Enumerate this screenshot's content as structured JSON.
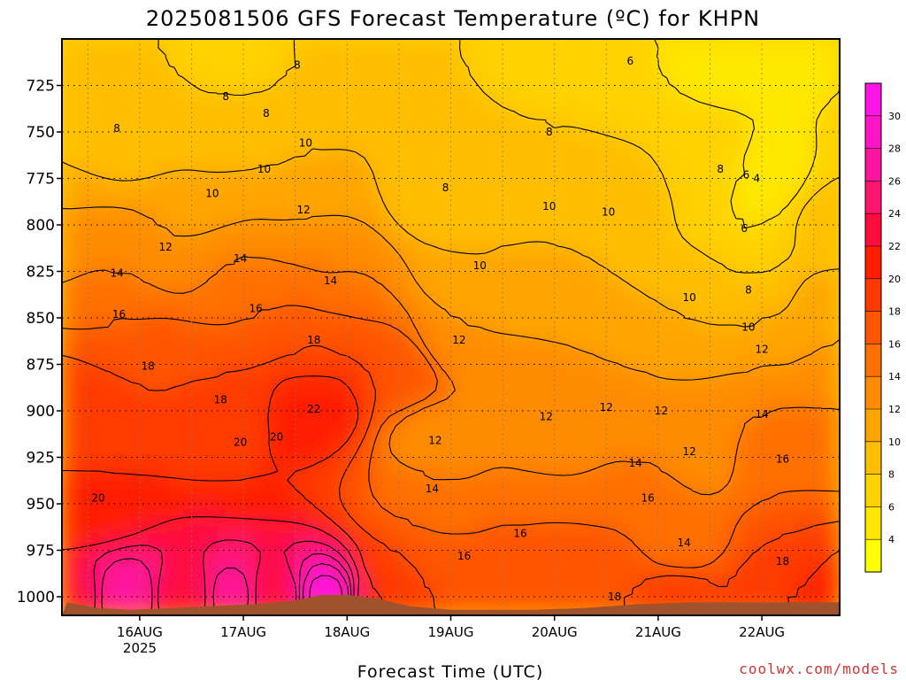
{
  "chart_data": {
    "type": "heatmap",
    "title": "2025081506 GFS Forecast Temperature (ºC) for KHPN",
    "xlabel": "Forecast Time (UTC)",
    "ylabel": "",
    "credit": "coolwx.com/models",
    "x_ticks": [
      "16AUG",
      "17AUG",
      "18AUG",
      "19AUG",
      "20AUG",
      "21AUG",
      "22AUG"
    ],
    "x_year_label": "2025",
    "x_range_days": [
      15.25,
      22.75
    ],
    "y_ticks": [
      725,
      750,
      775,
      800,
      825,
      850,
      875,
      900,
      925,
      950,
      975,
      1000
    ],
    "y_range_hpa": [
      700,
      1010
    ],
    "grid": true,
    "colorbar": {
      "ticks": [
        4,
        6,
        8,
        10,
        12,
        14,
        16,
        18,
        20,
        22,
        24,
        26,
        28,
        30
      ],
      "range": [
        2,
        32
      ],
      "colors": [
        "#ffff00",
        "#ffe800",
        "#ffd200",
        "#ffbe00",
        "#ffa500",
        "#ff8c00",
        "#ff7000",
        "#ff5400",
        "#ff3a00",
        "#ff1e00",
        "#ff0c3c",
        "#ff1470",
        "#ff14a0",
        "#ff14c8",
        "#ff14e6"
      ]
    },
    "ground_color": "#a0522d",
    "contour_interval": 2,
    "contour_labels": [
      {
        "day": 15.78,
        "p": 748,
        "v": 8
      },
      {
        "day": 16.83,
        "p": 731,
        "v": 8
      },
      {
        "day": 17.22,
        "p": 740,
        "v": 8
      },
      {
        "day": 17.52,
        "p": 714,
        "v": 8
      },
      {
        "day": 17.2,
        "p": 770,
        "v": 10
      },
      {
        "day": 17.6,
        "p": 756,
        "v": 10
      },
      {
        "day": 16.7,
        "p": 783,
        "v": 10
      },
      {
        "day": 16.25,
        "p": 812,
        "v": 12
      },
      {
        "day": 17.58,
        "p": 792,
        "v": 12
      },
      {
        "day": 15.78,
        "p": 826,
        "v": 14
      },
      {
        "day": 16.97,
        "p": 818,
        "v": 14
      },
      {
        "day": 17.84,
        "p": 830,
        "v": 14
      },
      {
        "day": 15.8,
        "p": 848,
        "v": 16
      },
      {
        "day": 17.12,
        "p": 845,
        "v": 16
      },
      {
        "day": 16.08,
        "p": 876,
        "v": 18
      },
      {
        "day": 16.78,
        "p": 894,
        "v": 18
      },
      {
        "day": 17.68,
        "p": 862,
        "v": 18
      },
      {
        "day": 15.6,
        "p": 947,
        "v": 20
      },
      {
        "day": 16.97,
        "p": 917,
        "v": 20
      },
      {
        "day": 17.32,
        "p": 914,
        "v": 20
      },
      {
        "day": 17.68,
        "p": 899,
        "v": 22
      },
      {
        "day": 18.95,
        "p": 780,
        "v": 8
      },
      {
        "day": 19.95,
        "p": 750,
        "v": 8
      },
      {
        "day": 20.73,
        "p": 712,
        "v": 6
      },
      {
        "day": 21.6,
        "p": 770,
        "v": 8
      },
      {
        "day": 21.85,
        "p": 773,
        "v": 6
      },
      {
        "day": 21.95,
        "p": 775,
        "v": 4
      },
      {
        "day": 21.83,
        "p": 802,
        "v": 6
      },
      {
        "day": 19.95,
        "p": 790,
        "v": 10
      },
      {
        "day": 20.52,
        "p": 793,
        "v": 10
      },
      {
        "day": 19.28,
        "p": 822,
        "v": 10
      },
      {
        "day": 21.3,
        "p": 839,
        "v": 10
      },
      {
        "day": 21.87,
        "p": 835,
        "v": 8
      },
      {
        "day": 21.87,
        "p": 855,
        "v": 10
      },
      {
        "day": 19.08,
        "p": 862,
        "v": 12
      },
      {
        "day": 22.0,
        "p": 867,
        "v": 12
      },
      {
        "day": 20.5,
        "p": 898,
        "v": 12
      },
      {
        "day": 21.03,
        "p": 900,
        "v": 12
      },
      {
        "day": 19.92,
        "p": 903,
        "v": 12
      },
      {
        "day": 18.85,
        "p": 916,
        "v": 12
      },
      {
        "day": 21.3,
        "p": 922,
        "v": 12
      },
      {
        "day": 22.0,
        "p": 902,
        "v": 14
      },
      {
        "day": 18.82,
        "p": 942,
        "v": 14
      },
      {
        "day": 20.78,
        "p": 928,
        "v": 14
      },
      {
        "day": 21.25,
        "p": 971,
        "v": 14
      },
      {
        "day": 22.2,
        "p": 926,
        "v": 16
      },
      {
        "day": 20.9,
        "p": 947,
        "v": 16
      },
      {
        "day": 19.67,
        "p": 966,
        "v": 16
      },
      {
        "day": 19.13,
        "p": 978,
        "v": 16
      },
      {
        "day": 20.58,
        "p": 1000,
        "v": 18
      },
      {
        "day": 22.2,
        "p": 981,
        "v": 18
      }
    ]
  }
}
